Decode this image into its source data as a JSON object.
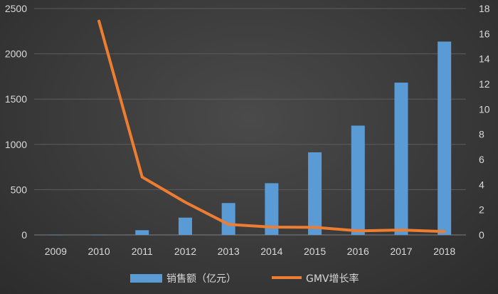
{
  "chart_data": {
    "type": "bar",
    "categories": [
      "2009",
      "2010",
      "2011",
      "2012",
      "2013",
      "2014",
      "2015",
      "2016",
      "2017",
      "2018"
    ],
    "series": [
      {
        "name": "销售额（亿元）",
        "kind": "bar",
        "axis": "left",
        "color": "#5b9bd5",
        "values": [
          1,
          2,
          52,
          191,
          352,
          571,
          912,
          1207,
          1682,
          2135
        ]
      },
      {
        "name": "GMV增长率",
        "kind": "line",
        "axis": "right",
        "color": "#ed7d31",
        "values": [
          null,
          17,
          4.6,
          2.6,
          0.84,
          0.62,
          0.6,
          0.32,
          0.39,
          0.27
        ]
      }
    ],
    "ylim_left": [
      0,
      2500
    ],
    "yticks_left": [
      "0",
      "500",
      "1000",
      "1500",
      "2000",
      "2500"
    ],
    "ylim_right": [
      0,
      18
    ],
    "yticks_right": [
      "0",
      "2",
      "4",
      "6",
      "8",
      "10",
      "12",
      "14",
      "16",
      "18"
    ],
    "grid": true,
    "legend_position": "bottom"
  }
}
